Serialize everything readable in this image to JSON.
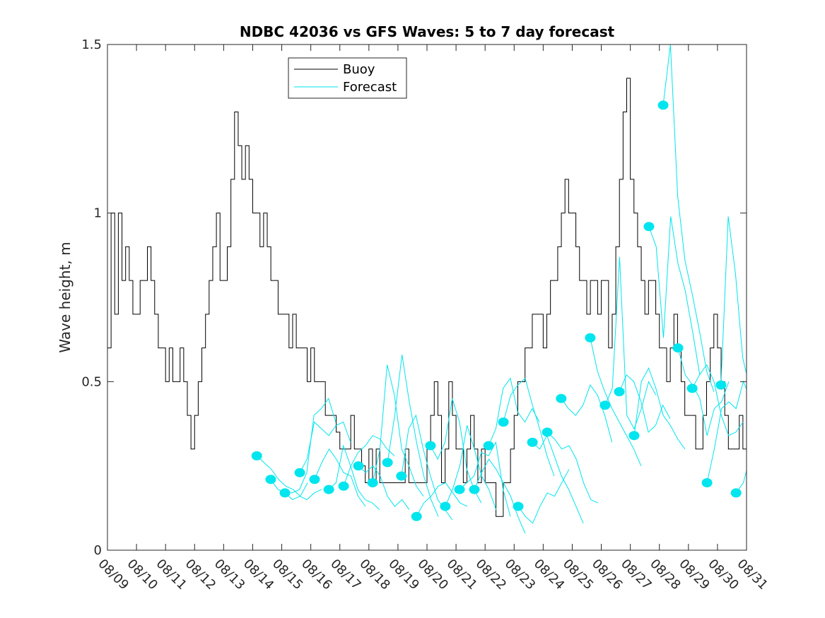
{
  "chart_data": {
    "type": "line",
    "title": "NDBC 42036 vs GFS Waves: 5 to 7 day forecast",
    "xlabel": "",
    "ylabel": "Wave height, m",
    "xlim_days_from_0809": [
      0,
      22
    ],
    "ylim": [
      0,
      1.5
    ],
    "yticks": [
      0,
      0.5,
      1,
      1.5
    ],
    "ytick_labels": [
      "0",
      "0.5",
      "1",
      "1.5"
    ],
    "xtick_labels": [
      "08/09",
      "08/10",
      "08/11",
      "08/12",
      "08/13",
      "08/14",
      "08/15",
      "08/16",
      "08/17",
      "08/18",
      "08/19",
      "08/20",
      "08/21",
      "08/22",
      "08/23",
      "08/24",
      "08/25",
      "08/26",
      "08/27",
      "08/28",
      "08/29",
      "08/30",
      "08/31"
    ],
    "grid": false,
    "legend": {
      "placement": "top-center-left",
      "entries": [
        {
          "label": "Buoy",
          "color": "#000000"
        },
        {
          "label": "Forecast",
          "color": "#00e5ee"
        }
      ]
    },
    "colors": {
      "buoy": "#000000",
      "forecast": "#00e5ee"
    },
    "buoy_series": {
      "name": "Buoy",
      "step_days": 0.125,
      "values": [
        0.6,
        1.0,
        0.7,
        1.0,
        0.8,
        0.9,
        0.8,
        0.7,
        0.7,
        0.8,
        0.8,
        0.9,
        0.8,
        0.7,
        0.6,
        0.6,
        0.5,
        0.6,
        0.5,
        0.5,
        0.6,
        0.5,
        0.4,
        0.3,
        0.4,
        0.5,
        0.6,
        0.7,
        0.8,
        0.9,
        1.0,
        0.8,
        0.8,
        0.9,
        1.1,
        1.3,
        1.2,
        1.1,
        1.2,
        1.1,
        1.0,
        1.0,
        0.9,
        1.0,
        0.9,
        0.8,
        0.8,
        0.7,
        0.7,
        0.7,
        0.6,
        0.7,
        0.6,
        0.6,
        0.6,
        0.5,
        0.6,
        0.5,
        0.5,
        0.5,
        0.4,
        0.4,
        0.4,
        0.35,
        0.3,
        0.3,
        0.3,
        0.4,
        0.3,
        0.3,
        0.25,
        0.2,
        0.3,
        0.2,
        0.3,
        0.2,
        0.2,
        0.2,
        0.2,
        0.2,
        0.2,
        0.2,
        0.3,
        0.2,
        0.2,
        0.2,
        0.2,
        0.2,
        0.3,
        0.4,
        0.5,
        0.4,
        0.2,
        0.3,
        0.5,
        0.4,
        0.3,
        0.3,
        0.2,
        0.3,
        0.4,
        0.3,
        0.2,
        0.3,
        0.2,
        0.2,
        0.2,
        0.1,
        0.1,
        0.2,
        0.2,
        0.3,
        0.4,
        0.5,
        0.5,
        0.6,
        0.6,
        0.7,
        0.7,
        0.7,
        0.6,
        0.7,
        0.8,
        0.8,
        0.9,
        1.0,
        1.1,
        1.0,
        1.0,
        0.9,
        0.8,
        0.8,
        0.7,
        0.8,
        0.8,
        0.7,
        0.8,
        0.8,
        0.6,
        0.7,
        0.9,
        1.1,
        1.3,
        1.4,
        1.1,
        1.0,
        0.9,
        0.8,
        0.7,
        0.8,
        0.8,
        0.7,
        0.6,
        0.6,
        0.5,
        0.6,
        0.7,
        0.6,
        0.5,
        0.4,
        0.4,
        0.4,
        0.3,
        0.3,
        0.4,
        0.5,
        0.6,
        0.7,
        0.6,
        0.5,
        0.4,
        0.3,
        0.3,
        0.3,
        0.4,
        0.3,
        0.3,
        0.5,
        0.4,
        0.3,
        0.2,
        0.3,
        0.3,
        0.2,
        0.3,
        0.3,
        0.3,
        0.3,
        0.4,
        0.3,
        0.4,
        0.5
      ]
    },
    "forecasts": [
      {
        "start_day": 5.14,
        "values": [
          0.28,
          0.26,
          0.24,
          0.21,
          0.19,
          0.18,
          0.16,
          0.2
        ]
      },
      {
        "start_day": 5.62,
        "values": [
          0.21,
          0.18,
          0.17,
          0.15,
          0.16,
          0.15,
          0.17,
          0.18
        ]
      },
      {
        "start_day": 6.11,
        "values": [
          0.17,
          0.17,
          0.18,
          0.23,
          0.4,
          0.42,
          0.45,
          0.38
        ]
      },
      {
        "start_day": 6.62,
        "values": [
          0.23,
          0.27,
          0.38,
          0.36,
          0.34,
          0.37,
          0.38,
          0.32
        ]
      },
      {
        "start_day": 7.13,
        "values": [
          0.21,
          0.26,
          0.3,
          0.27,
          0.23,
          0.22,
          0.16,
          0.13
        ]
      },
      {
        "start_day": 7.62,
        "values": [
          0.18,
          0.2,
          0.31,
          0.25,
          0.18,
          0.15,
          0.14,
          0.12
        ]
      },
      {
        "start_day": 8.13,
        "values": [
          0.19,
          0.25,
          0.29,
          0.31,
          0.34,
          0.33,
          0.3,
          0.28
        ]
      },
      {
        "start_day": 8.64,
        "values": [
          0.25,
          0.23,
          0.25,
          0.22,
          0.16,
          0.13,
          0.15,
          0.12
        ]
      },
      {
        "start_day": 9.13,
        "values": [
          0.2,
          0.3,
          0.55,
          0.46,
          0.3,
          0.25,
          0.19,
          0.16
        ]
      },
      {
        "start_day": 9.64,
        "values": [
          0.26,
          0.4,
          0.58,
          0.44,
          0.32,
          0.22,
          0.15,
          0.1
        ]
      },
      {
        "start_day": 10.12,
        "values": [
          0.22,
          0.36,
          0.4,
          0.3,
          0.22,
          0.15,
          0.12,
          0.09
        ]
      },
      {
        "start_day": 10.64,
        "values": [
          0.1,
          0.14,
          0.16,
          0.19,
          0.2,
          0.17,
          0.14,
          0.13
        ]
      },
      {
        "start_day": 11.12,
        "values": [
          0.31,
          0.27,
          0.32,
          0.45,
          0.38,
          0.24,
          0.18,
          0.14
        ]
      },
      {
        "start_day": 11.63,
        "values": [
          0.13,
          0.18,
          0.25,
          0.37,
          0.3,
          0.22,
          0.18,
          0.12
        ]
      },
      {
        "start_day": 12.12,
        "values": [
          0.18,
          0.2,
          0.22,
          0.29,
          0.28,
          0.32,
          0.18,
          0.1
        ]
      },
      {
        "start_day": 12.63,
        "values": [
          0.18,
          0.23,
          0.27,
          0.24,
          0.2,
          0.16,
          0.1,
          0.05
        ]
      },
      {
        "start_day": 13.12,
        "values": [
          0.31,
          0.36,
          0.48,
          0.51,
          0.41,
          0.38,
          0.42,
          0.38
        ]
      },
      {
        "start_day": 13.63,
        "values": [
          0.38,
          0.46,
          0.49,
          0.51,
          0.43,
          0.36,
          0.28,
          0.22
        ]
      },
      {
        "start_day": 14.14,
        "values": [
          0.13,
          0.1,
          0.08,
          0.13,
          0.17,
          0.16,
          0.2,
          0.24
        ]
      },
      {
        "start_day": 14.63,
        "values": [
          0.32,
          0.3,
          0.34,
          0.28,
          0.22,
          0.18,
          0.13,
          0.08
        ]
      },
      {
        "start_day": 15.14,
        "values": [
          0.35,
          0.33,
          0.3,
          0.31,
          0.27,
          0.2,
          0.15,
          0.14
        ]
      },
      {
        "start_day": 15.62,
        "values": [
          0.45,
          0.42,
          0.4,
          0.43,
          0.49,
          0.46,
          0.4,
          0.32
        ]
      },
      {
        "start_day": 16.62,
        "values": [
          0.63,
          0.53,
          0.47,
          0.42,
          0.38,
          0.34,
          0.3,
          0.25
        ]
      },
      {
        "start_day": 17.13,
        "values": [
          0.43,
          0.48,
          0.87,
          0.4,
          0.36,
          0.42,
          0.5,
          0.46
        ]
      },
      {
        "start_day": 17.62,
        "values": [
          0.47,
          0.52,
          0.5,
          0.44,
          0.35,
          0.37,
          0.43,
          0.39
        ]
      },
      {
        "start_day": 18.13,
        "values": [
          0.34,
          0.5,
          0.54,
          0.48,
          0.4,
          0.37,
          0.33,
          0.3
        ]
      },
      {
        "start_day": 18.64,
        "values": [
          0.96,
          0.9,
          0.63,
          0.99,
          0.85,
          0.77,
          0.65,
          0.52
        ]
      },
      {
        "start_day": 19.13,
        "values": [
          1.32,
          1.5,
          1.05,
          0.86,
          0.76,
          0.65,
          0.53,
          0.47
        ]
      },
      {
        "start_day": 19.64,
        "values": [
          0.6,
          0.52,
          0.49,
          0.45,
          0.34,
          0.42,
          0.44,
          0.5
        ]
      },
      {
        "start_day": 20.13,
        "values": [
          0.48,
          0.52,
          0.55,
          0.5,
          0.4,
          0.34,
          0.35,
          0.38
        ]
      },
      {
        "start_day": 20.64,
        "values": [
          0.2,
          0.3,
          0.42,
          0.44,
          0.42,
          0.5,
          0.45,
          0.36
        ]
      },
      {
        "start_day": 21.12,
        "values": [
          0.49,
          0.99,
          0.82,
          0.57,
          0.48
        ]
      },
      {
        "start_day": 21.64,
        "values": [
          0.17,
          0.2,
          0.28
        ]
      }
    ],
    "forecast_step_days": 0.25
  }
}
